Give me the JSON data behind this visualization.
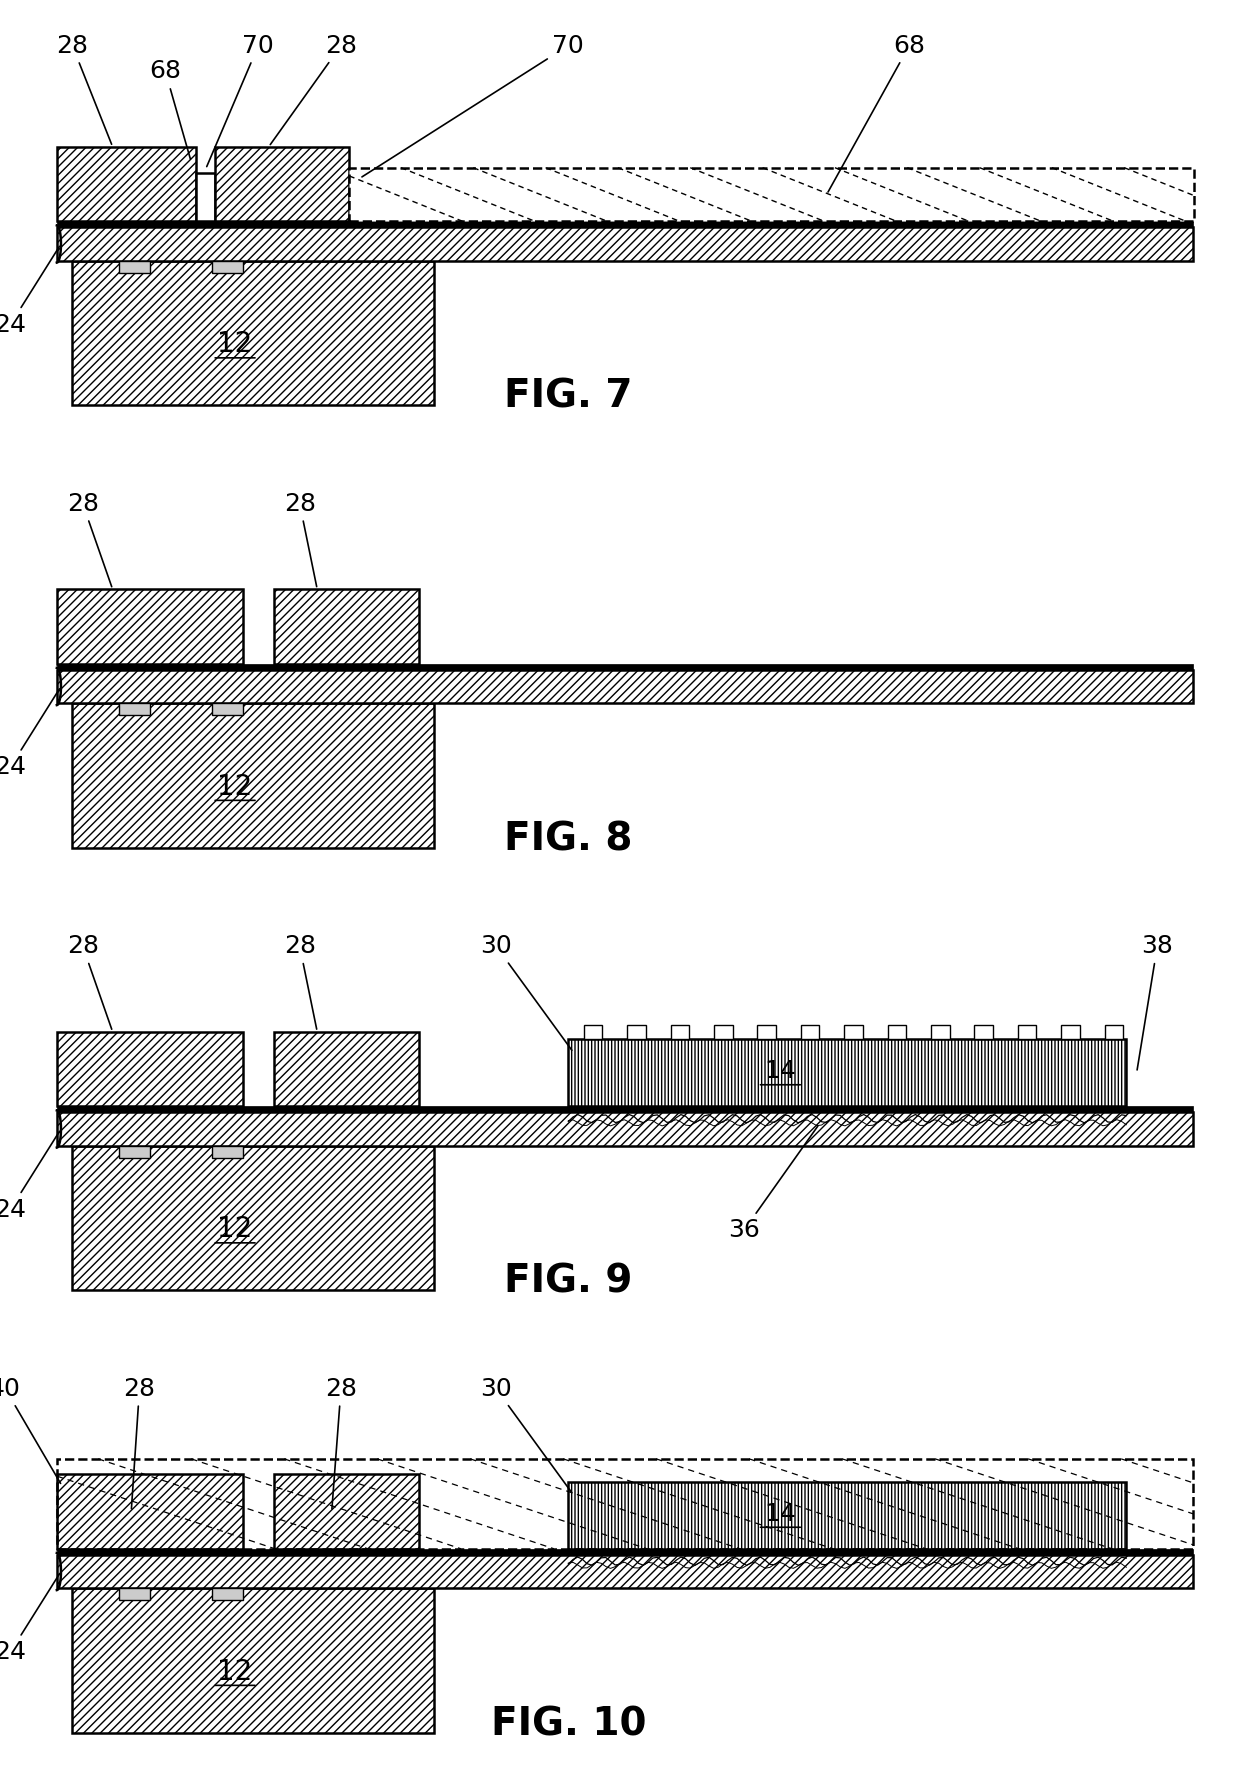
{
  "bg_color": "#ffffff",
  "lw": 1.8,
  "hatch_solid": "////",
  "hatch_dashed": "----",
  "annotation_fs": 18,
  "fig_label_fs": 28,
  "label_fs": 20,
  "fig_labels": [
    "FIG. 7",
    "FIG. 8",
    "FIG. 9",
    "FIG. 10"
  ]
}
